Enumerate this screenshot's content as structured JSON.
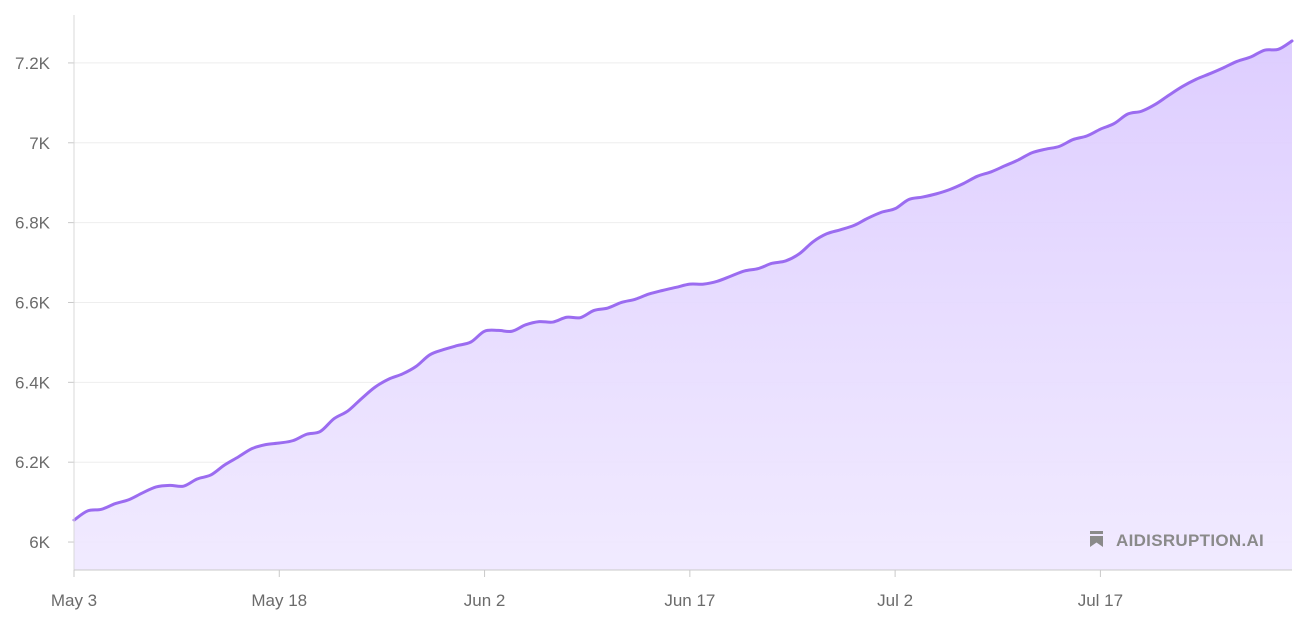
{
  "chart_data": {
    "type": "area",
    "title": "",
    "xlabel": "",
    "ylabel": "",
    "x_start": "2024-05-03",
    "x_end": "2024-07-31",
    "x_tick_labels": [
      {
        "date": "2024-05-03",
        "label": "May 3"
      },
      {
        "date": "2024-05-18",
        "label": "May 18"
      },
      {
        "date": "2024-06-02",
        "label": "Jun 2"
      },
      {
        "date": "2024-06-17",
        "label": "Jun 17"
      },
      {
        "date": "2024-07-02",
        "label": "Jul 2"
      },
      {
        "date": "2024-07-17",
        "label": "Jul 17"
      }
    ],
    "ylim": [
      5930,
      7320
    ],
    "y_ticks": [
      {
        "value": 6000,
        "label": "6K"
      },
      {
        "value": 6200,
        "label": "6.2K"
      },
      {
        "value": 6400,
        "label": "6.4K"
      },
      {
        "value": 6600,
        "label": "6.6K"
      },
      {
        "value": 6800,
        "label": "6.8K"
      },
      {
        "value": 7000,
        "label": "7K"
      },
      {
        "value": 7200,
        "label": "7.2K"
      }
    ],
    "grid": true,
    "line_color": "#9b6cf0",
    "fill_color": "#dcccff",
    "series": [
      {
        "x": [
          "2024-05-03",
          "2024-05-04",
          "2024-05-05",
          "2024-05-06",
          "2024-05-07",
          "2024-05-08",
          "2024-05-09",
          "2024-05-10",
          "2024-05-11",
          "2024-05-12",
          "2024-05-13",
          "2024-05-14",
          "2024-05-15",
          "2024-05-16",
          "2024-05-17",
          "2024-05-18",
          "2024-05-19",
          "2024-05-20",
          "2024-05-21",
          "2024-05-22",
          "2024-05-23",
          "2024-05-24",
          "2024-05-25",
          "2024-05-26",
          "2024-05-27",
          "2024-05-28",
          "2024-05-29",
          "2024-05-30",
          "2024-05-31",
          "2024-06-01",
          "2024-06-02",
          "2024-06-03",
          "2024-06-04",
          "2024-06-05",
          "2024-06-06",
          "2024-06-07",
          "2024-06-08",
          "2024-06-09",
          "2024-06-10",
          "2024-06-11",
          "2024-06-12",
          "2024-06-13",
          "2024-06-14",
          "2024-06-15",
          "2024-06-16",
          "2024-06-17",
          "2024-06-18",
          "2024-06-19",
          "2024-06-20",
          "2024-06-21",
          "2024-06-22",
          "2024-06-23",
          "2024-06-24",
          "2024-06-25",
          "2024-06-26",
          "2024-06-27",
          "2024-06-28",
          "2024-06-29",
          "2024-06-30",
          "2024-07-01",
          "2024-07-02",
          "2024-07-03",
          "2024-07-04",
          "2024-07-05",
          "2024-07-06",
          "2024-07-07",
          "2024-07-08",
          "2024-07-09",
          "2024-07-10",
          "2024-07-11",
          "2024-07-12",
          "2024-07-13",
          "2024-07-14",
          "2024-07-15",
          "2024-07-16",
          "2024-07-17",
          "2024-07-18",
          "2024-07-19",
          "2024-07-20",
          "2024-07-21",
          "2024-07-22",
          "2024-07-23",
          "2024-07-24",
          "2024-07-25",
          "2024-07-26",
          "2024-07-27",
          "2024-07-28",
          "2024-07-29",
          "2024-07-30",
          "2024-07-31"
        ],
        "values": [
          6055,
          6078,
          6082,
          6096,
          6106,
          6123,
          6138,
          6142,
          6140,
          6158,
          6168,
          6193,
          6213,
          6234,
          6244,
          6248,
          6254,
          6270,
          6277,
          6309,
          6328,
          6359,
          6388,
          6408,
          6421,
          6440,
          6469,
          6482,
          6492,
          6501,
          6528,
          6530,
          6528,
          6544,
          6552,
          6551,
          6563,
          6562,
          6580,
          6586,
          6600,
          6608,
          6621,
          6630,
          6638,
          6646,
          6646,
          6653,
          6666,
          6679,
          6685,
          6698,
          6704,
          6722,
          6752,
          6772,
          6782,
          6793,
          6811,
          6826,
          6835,
          6858,
          6864,
          6872,
          6883,
          6898,
          6916,
          6927,
          6942,
          6957,
          6975,
          6984,
          6991,
          7008,
          7017,
          7034,
          7048,
          7072,
          7079,
          7096,
          7119,
          7141,
          7159,
          7173,
          7188,
          7204,
          7215,
          7232,
          7234,
          7255
        ]
      }
    ]
  },
  "watermark": {
    "text": "AIDISRUPTION.AI",
    "icon": "bookmark-icon"
  }
}
